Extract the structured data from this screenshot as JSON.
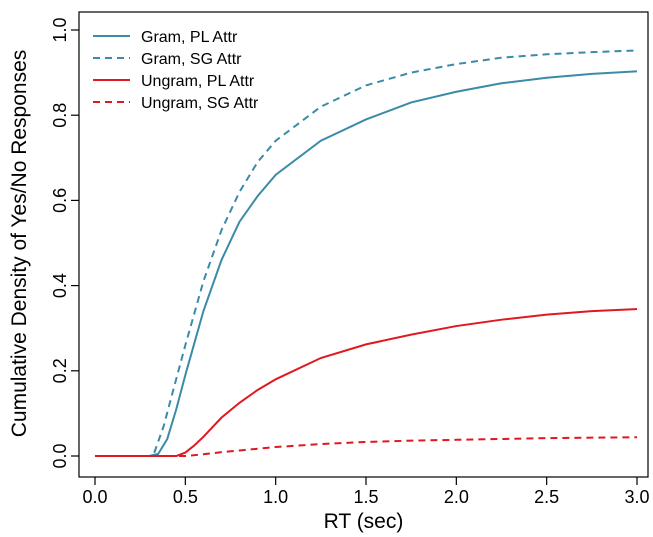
{
  "chart_data": {
    "type": "line",
    "xlabel": "RT (sec)",
    "ylabel": "Cumulative Density of Yes/No Responses",
    "xlim": [
      0,
      3.0
    ],
    "ylim": [
      0,
      1.0
    ],
    "x_ticks": [
      "0.0",
      "0.5",
      "1.0",
      "1.5",
      "2.0",
      "2.5",
      "3.0"
    ],
    "y_ticks": [
      "0.0",
      "0.2",
      "0.4",
      "0.6",
      "0.8",
      "1.0"
    ],
    "legend_position": "top-left",
    "grid": false,
    "series": [
      {
        "name": "Gram, PL Attr",
        "color": "#3a8ba8",
        "dash": "solid",
        "x": [
          0.0,
          0.3,
          0.35,
          0.4,
          0.45,
          0.5,
          0.6,
          0.7,
          0.8,
          0.9,
          1.0,
          1.25,
          1.5,
          1.75,
          2.0,
          2.25,
          2.5,
          2.75,
          3.0
        ],
        "y": [
          0.0,
          0.0,
          0.005,
          0.04,
          0.11,
          0.19,
          0.34,
          0.46,
          0.55,
          0.61,
          0.66,
          0.74,
          0.79,
          0.83,
          0.855,
          0.875,
          0.888,
          0.897,
          0.903
        ]
      },
      {
        "name": "Gram, SG Attr",
        "color": "#3a8ba8",
        "dash": "dashed",
        "x": [
          0.0,
          0.3,
          0.33,
          0.38,
          0.43,
          0.5,
          0.6,
          0.7,
          0.8,
          0.9,
          1.0,
          1.25,
          1.5,
          1.75,
          2.0,
          2.25,
          2.5,
          2.75,
          3.0
        ],
        "y": [
          0.0,
          0.0,
          0.01,
          0.07,
          0.15,
          0.26,
          0.41,
          0.53,
          0.62,
          0.69,
          0.74,
          0.82,
          0.87,
          0.9,
          0.92,
          0.935,
          0.943,
          0.948,
          0.952
        ]
      },
      {
        "name": "Ungram, PL Attr",
        "color": "#e0181f",
        "dash": "solid",
        "x": [
          0.0,
          0.45,
          0.5,
          0.55,
          0.6,
          0.7,
          0.8,
          0.9,
          1.0,
          1.25,
          1.5,
          1.75,
          2.0,
          2.25,
          2.5,
          2.75,
          3.0
        ],
        "y": [
          0.0,
          0.0,
          0.008,
          0.025,
          0.045,
          0.09,
          0.125,
          0.155,
          0.18,
          0.23,
          0.262,
          0.285,
          0.305,
          0.32,
          0.332,
          0.34,
          0.345
        ]
      },
      {
        "name": "Ungram, SG Attr",
        "color": "#e0181f",
        "dash": "dashed",
        "x": [
          0.0,
          0.5,
          0.6,
          0.7,
          0.8,
          0.9,
          1.0,
          1.25,
          1.5,
          1.75,
          2.0,
          2.25,
          2.5,
          2.75,
          3.0
        ],
        "y": [
          0.0,
          0.0,
          0.004,
          0.009,
          0.013,
          0.017,
          0.021,
          0.028,
          0.033,
          0.036,
          0.038,
          0.04,
          0.042,
          0.043,
          0.044
        ]
      }
    ]
  }
}
